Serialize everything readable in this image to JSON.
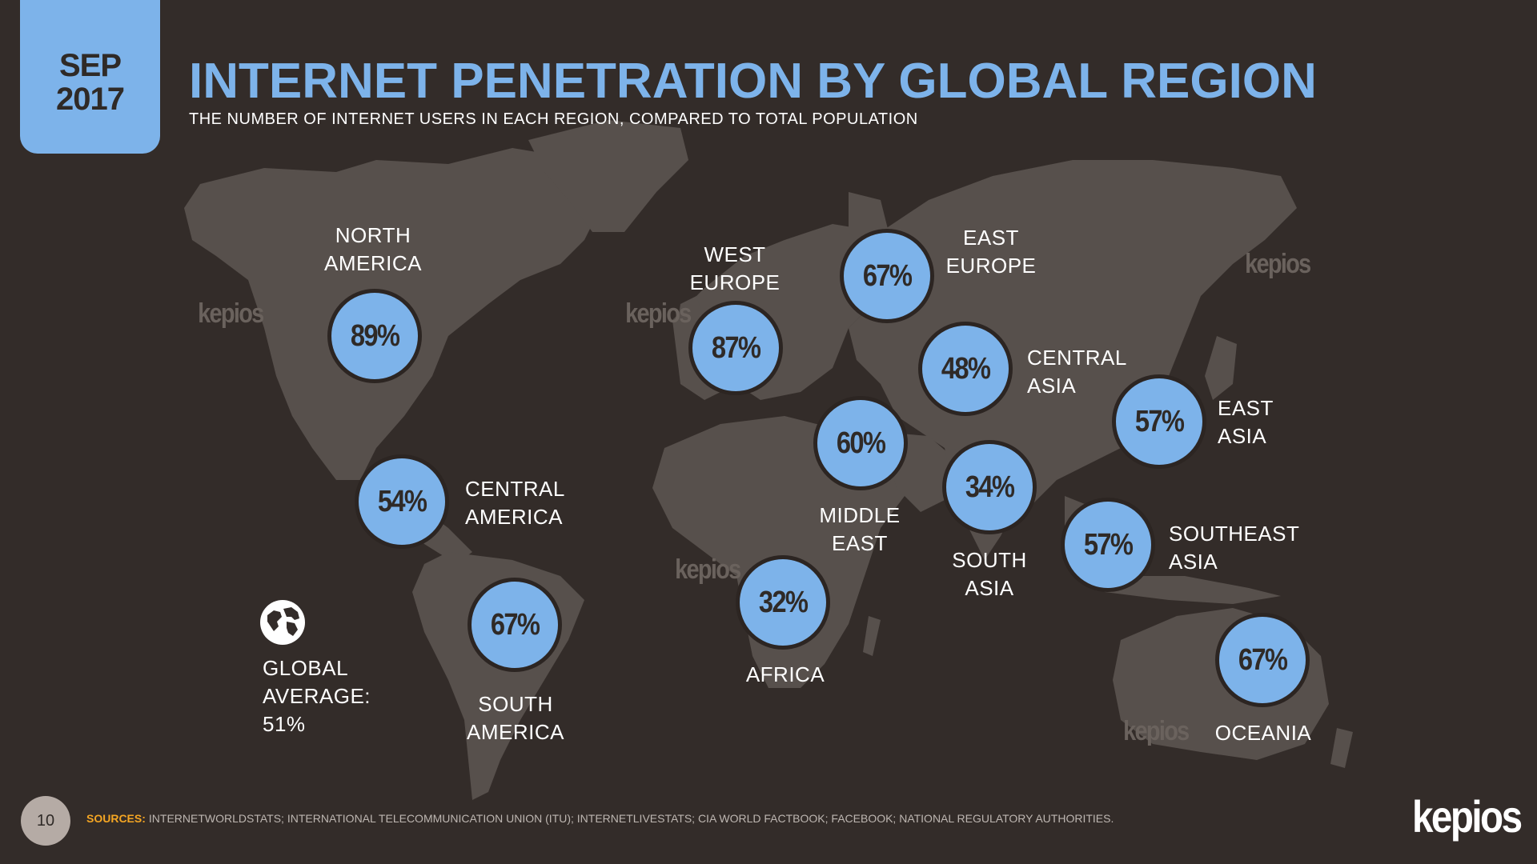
{
  "header": {
    "date_month": "SEP",
    "date_year": "2017",
    "title": "INTERNET PENETRATION BY GLOBAL REGION",
    "subtitle": "THE NUMBER OF INTERNET USERS IN EACH REGION, COMPARED TO TOTAL POPULATION"
  },
  "regions": [
    {
      "name": "NORTH\nAMERICA",
      "value": "89%"
    },
    {
      "name": "CENTRAL\nAMERICA",
      "value": "54%"
    },
    {
      "name": "SOUTH\nAMERICA",
      "value": "67%"
    },
    {
      "name": "WEST\nEUROPE",
      "value": "87%"
    },
    {
      "name": "EAST\nEUROPE",
      "value": "67%"
    },
    {
      "name": "CENTRAL\nASIA",
      "value": "48%"
    },
    {
      "name": "MIDDLE\nEAST",
      "value": "60%"
    },
    {
      "name": "AFRICA",
      "value": "32%"
    },
    {
      "name": "SOUTH\nASIA",
      "value": "34%"
    },
    {
      "name": "EAST\nASIA",
      "value": "57%"
    },
    {
      "name": "SOUTHEAST\nASIA",
      "value": "57%"
    },
    {
      "name": "OCEANIA",
      "value": "67%"
    }
  ],
  "global": {
    "label_line1": "GLOBAL",
    "label_line2": "AVERAGE:",
    "value": "51%"
  },
  "watermark": "kepios",
  "footer": {
    "page_number": "10",
    "sources_label": "SOURCES:",
    "sources_text": "INTERNETWORLDSTATS; INTERNATIONAL TELECOMMUNICATION UNION (ITU); INTERNETLIVESTATS; CIA WORLD FACTBOOK; FACEBOOK; NATIONAL REGULATORY AUTHORITIES.",
    "brand": "kepios"
  },
  "colors": {
    "background": "#332c29",
    "land": "#57504c",
    "accent": "#7db3ea",
    "sources_label": "#f5a623"
  },
  "icons": [
    "globe-icon"
  ]
}
